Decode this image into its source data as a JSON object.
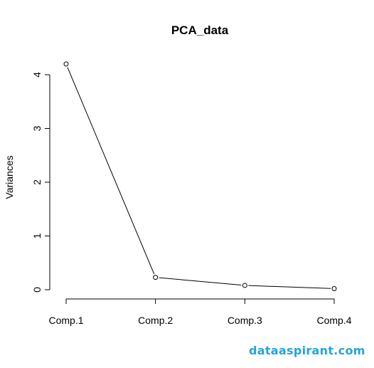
{
  "watermark": "dataaspirant.com",
  "chart_data": {
    "type": "line",
    "title": "PCA_data",
    "xlabel": "",
    "ylabel": "Variances",
    "categories": [
      "Comp.1",
      "Comp.2",
      "Comp.3",
      "Comp.4"
    ],
    "values": [
      4.2,
      0.23,
      0.08,
      0.02
    ],
    "ylim": [
      0,
      4
    ],
    "yticks": [
      0,
      1,
      2,
      3,
      4
    ],
    "ytick_labels": [
      "0",
      "1",
      "2",
      "3",
      "4"
    ],
    "marker": "open-circle",
    "line_color": "#000000",
    "grid": false,
    "legend": "none"
  }
}
